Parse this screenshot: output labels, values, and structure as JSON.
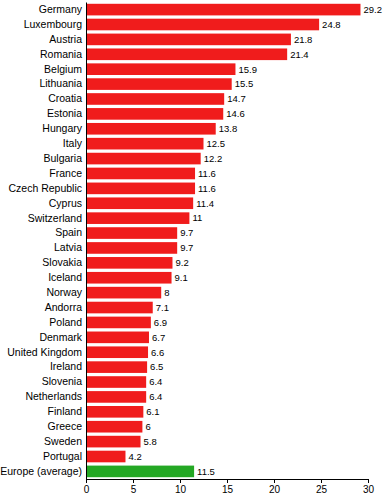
{
  "chart_data": {
    "type": "bar",
    "orientation": "horizontal",
    "categories": [
      "Germany",
      "Luxembourg",
      "Austria",
      "Romania",
      "Belgium",
      "Lithuania",
      "Croatia",
      "Estonia",
      "Hungary",
      "Italy",
      "Bulgaria",
      "France",
      "Czech Republic",
      "Cyprus",
      "Switzerland",
      "Spain",
      "Latvia",
      "Slovakia",
      "Iceland",
      "Norway",
      "Andorra",
      "Poland",
      "Denmark",
      "United Kingdom",
      "Ireland",
      "Slovenia",
      "Netherlands",
      "Finland",
      "Greece",
      "Sweden",
      "Portugal",
      "Europe (average)"
    ],
    "values": [
      29.2,
      24.8,
      21.8,
      21.4,
      15.9,
      15.5,
      14.7,
      14.6,
      13.8,
      12.5,
      12.2,
      11.6,
      11.6,
      11.4,
      11,
      9.7,
      9.7,
      9.2,
      9.1,
      8,
      7.1,
      6.9,
      6.7,
      6.6,
      6.5,
      6.4,
      6.4,
      6.1,
      6,
      5.8,
      4.2,
      11.5
    ],
    "colors": [
      "#f01c1c",
      "#f01c1c",
      "#f01c1c",
      "#f01c1c",
      "#f01c1c",
      "#f01c1c",
      "#f01c1c",
      "#f01c1c",
      "#f01c1c",
      "#f01c1c",
      "#f01c1c",
      "#f01c1c",
      "#f01c1c",
      "#f01c1c",
      "#f01c1c",
      "#f01c1c",
      "#f01c1c",
      "#f01c1c",
      "#f01c1c",
      "#f01c1c",
      "#f01c1c",
      "#f01c1c",
      "#f01c1c",
      "#f01c1c",
      "#f01c1c",
      "#f01c1c",
      "#f01c1c",
      "#f01c1c",
      "#f01c1c",
      "#f01c1c",
      "#f01c1c",
      "#24a824"
    ],
    "xlim": [
      0,
      30
    ],
    "xticks": [
      0,
      5,
      10,
      15,
      20,
      25,
      30
    ],
    "data_labels": true,
    "grid": false
  }
}
